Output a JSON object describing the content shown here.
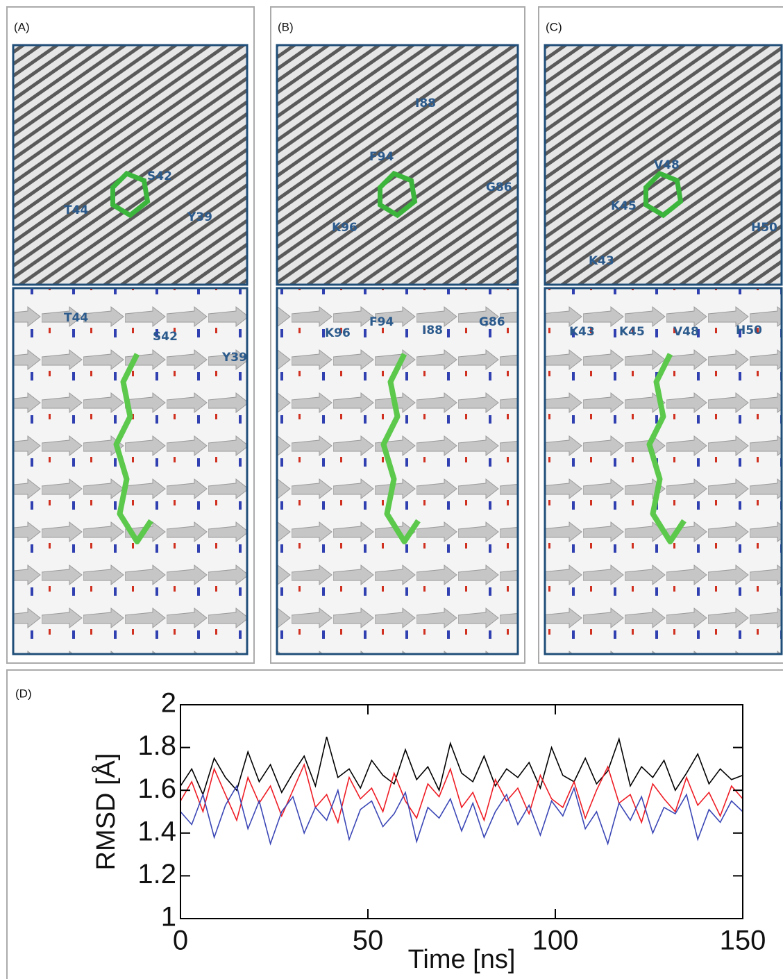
{
  "panels": [
    {
      "label": "(A)",
      "top_residues": [
        "T44",
        "S42",
        "Y39"
      ],
      "bottom_residues": [
        "T44",
        "S42",
        "Y39"
      ]
    },
    {
      "label": "(B)",
      "top_residues": [
        "I88",
        "F94",
        "G86",
        "K96"
      ],
      "bottom_residues": [
        "K96",
        "F94",
        "I88",
        "G86"
      ]
    },
    {
      "label": "(C)",
      "top_residues": [
        "V48",
        "K45",
        "H50",
        "K43"
      ],
      "bottom_residues": [
        "K43",
        "K45",
        "V48",
        "H50"
      ]
    }
  ],
  "chart_data": {
    "type": "line",
    "label": "(D)",
    "xlabel": "Time [ns]",
    "ylabel": "RMSD [Å]",
    "xlim": [
      0,
      150
    ],
    "ylim": [
      1,
      2
    ],
    "xticks": [
      0,
      50,
      100,
      150
    ],
    "yticks": [
      1,
      1.2,
      1.4,
      1.6,
      1.8,
      2
    ],
    "x": [
      0,
      3,
      6,
      9,
      12,
      15,
      18,
      21,
      24,
      27,
      30,
      33,
      36,
      39,
      42,
      45,
      48,
      51,
      54,
      57,
      60,
      63,
      66,
      69,
      72,
      75,
      78,
      81,
      84,
      87,
      90,
      93,
      96,
      99,
      102,
      105,
      108,
      111,
      114,
      117,
      120,
      123,
      126,
      129,
      132,
      135,
      138,
      141,
      144,
      147,
      150
    ],
    "series": [
      {
        "color": "#000000",
        "values": [
          1.62,
          1.7,
          1.58,
          1.75,
          1.66,
          1.6,
          1.78,
          1.64,
          1.72,
          1.59,
          1.68,
          1.76,
          1.62,
          1.85,
          1.66,
          1.7,
          1.61,
          1.74,
          1.67,
          1.63,
          1.79,
          1.65,
          1.71,
          1.6,
          1.82,
          1.68,
          1.64,
          1.76,
          1.62,
          1.7,
          1.66,
          1.73,
          1.61,
          1.8,
          1.67,
          1.64,
          1.75,
          1.63,
          1.69,
          1.84,
          1.62,
          1.71,
          1.66,
          1.74,
          1.6,
          1.68,
          1.77,
          1.63,
          1.7,
          1.65,
          1.67
        ]
      },
      {
        "color": "#ee1c24",
        "values": [
          1.55,
          1.64,
          1.5,
          1.7,
          1.58,
          1.46,
          1.66,
          1.54,
          1.62,
          1.48,
          1.6,
          1.72,
          1.52,
          1.58,
          1.45,
          1.66,
          1.56,
          1.61,
          1.5,
          1.68,
          1.55,
          1.47,
          1.63,
          1.57,
          1.7,
          1.52,
          1.59,
          1.46,
          1.65,
          1.55,
          1.61,
          1.49,
          1.67,
          1.56,
          1.52,
          1.64,
          1.47,
          1.6,
          1.71,
          1.54,
          1.58,
          1.45,
          1.63,
          1.56,
          1.5,
          1.66,
          1.53,
          1.59,
          1.48,
          1.62,
          1.56
        ]
      },
      {
        "color": "#3a46b5",
        "values": [
          1.5,
          1.44,
          1.58,
          1.38,
          1.53,
          1.62,
          1.42,
          1.55,
          1.35,
          1.5,
          1.57,
          1.4,
          1.52,
          1.46,
          1.6,
          1.37,
          1.51,
          1.55,
          1.43,
          1.49,
          1.59,
          1.36,
          1.52,
          1.47,
          1.56,
          1.41,
          1.54,
          1.38,
          1.5,
          1.58,
          1.44,
          1.53,
          1.39,
          1.55,
          1.48,
          1.61,
          1.42,
          1.5,
          1.35,
          1.54,
          1.46,
          1.57,
          1.4,
          1.52,
          1.49,
          1.58,
          1.37,
          1.51,
          1.45,
          1.55,
          1.5
        ]
      }
    ]
  }
}
